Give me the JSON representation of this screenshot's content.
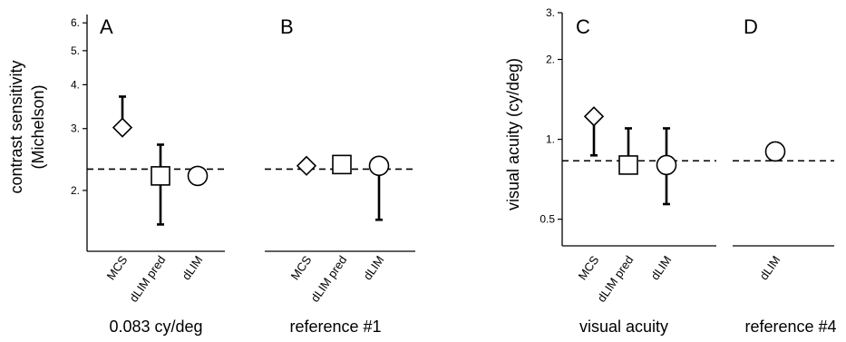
{
  "chart_data": [
    {
      "panel": "A",
      "type": "scatter",
      "scale": "log",
      "ylabel_line1": "contrast sensitivity",
      "ylabel_line2": "(Michelson)",
      "xlabel": "0.083 cy/deg",
      "categories": [
        "MCS",
        "dLIM pred",
        "dLIM"
      ],
      "yticks": [
        2.0,
        3.0,
        4.0,
        5.0,
        6.0
      ],
      "ytick_labels": [
        "2.",
        "3.",
        "4.",
        "5.",
        "6."
      ],
      "ylim": [
        1.35,
        6.3
      ],
      "reference_line": 2.3,
      "points": [
        {
          "category": "MCS",
          "marker": "diamond",
          "value": 3.02,
          "err_low": 3.02,
          "err_high": 3.7
        },
        {
          "category": "dLIM pred",
          "marker": "square",
          "value": 2.2,
          "err_low": 1.6,
          "err_high": 2.7
        },
        {
          "category": "dLIM",
          "marker": "circle",
          "value": 2.2,
          "err_low": 2.2,
          "err_high": 2.2
        }
      ]
    },
    {
      "panel": "B",
      "type": "scatter",
      "scale": "log",
      "xlabel": "reference #1",
      "categories": [
        "MCS",
        "dLIM pred",
        "dLIM"
      ],
      "ylim": [
        1.35,
        6.3
      ],
      "reference_line": 2.3,
      "points": [
        {
          "category": "MCS",
          "marker": "diamond",
          "value": 2.35,
          "err_low": 2.35,
          "err_high": 2.35
        },
        {
          "category": "dLIM pred",
          "marker": "square",
          "value": 2.37,
          "err_low": 2.37,
          "err_high": 2.37
        },
        {
          "category": "dLIM",
          "marker": "circle",
          "value": 2.35,
          "err_low": 1.65,
          "err_high": 2.35
        }
      ]
    },
    {
      "panel": "C",
      "type": "scatter",
      "scale": "log",
      "ylabel": "visual acuity (cy/deg)",
      "xlabel": "visual acuity",
      "categories": [
        "MCS",
        "dLIM pred",
        "dLIM"
      ],
      "yticks": [
        0.5,
        1.0,
        2.0,
        3.0
      ],
      "ytick_labels": [
        "0.5",
        "1.",
        "2.",
        "3."
      ],
      "ylim": [
        0.4,
        3.0
      ],
      "reference_line": 0.83,
      "points": [
        {
          "category": "MCS",
          "marker": "diamond",
          "value": 1.22,
          "err_low": 0.87,
          "err_high": 1.22
        },
        {
          "category": "dLIM pred",
          "marker": "square",
          "value": 0.8,
          "err_low": 0.8,
          "err_high": 1.1
        },
        {
          "category": "dLIM",
          "marker": "circle",
          "value": 0.8,
          "err_low": 0.57,
          "err_high": 1.1
        }
      ]
    },
    {
      "panel": "D",
      "type": "scatter",
      "scale": "log",
      "xlabel": "reference #4",
      "categories": [
        "dLIM"
      ],
      "ylim": [
        0.4,
        3.0
      ],
      "reference_line": 0.83,
      "points": [
        {
          "category": "dLIM",
          "marker": "circle",
          "value": 0.9,
          "err_low": 0.84,
          "err_high": 0.97
        }
      ]
    }
  ]
}
